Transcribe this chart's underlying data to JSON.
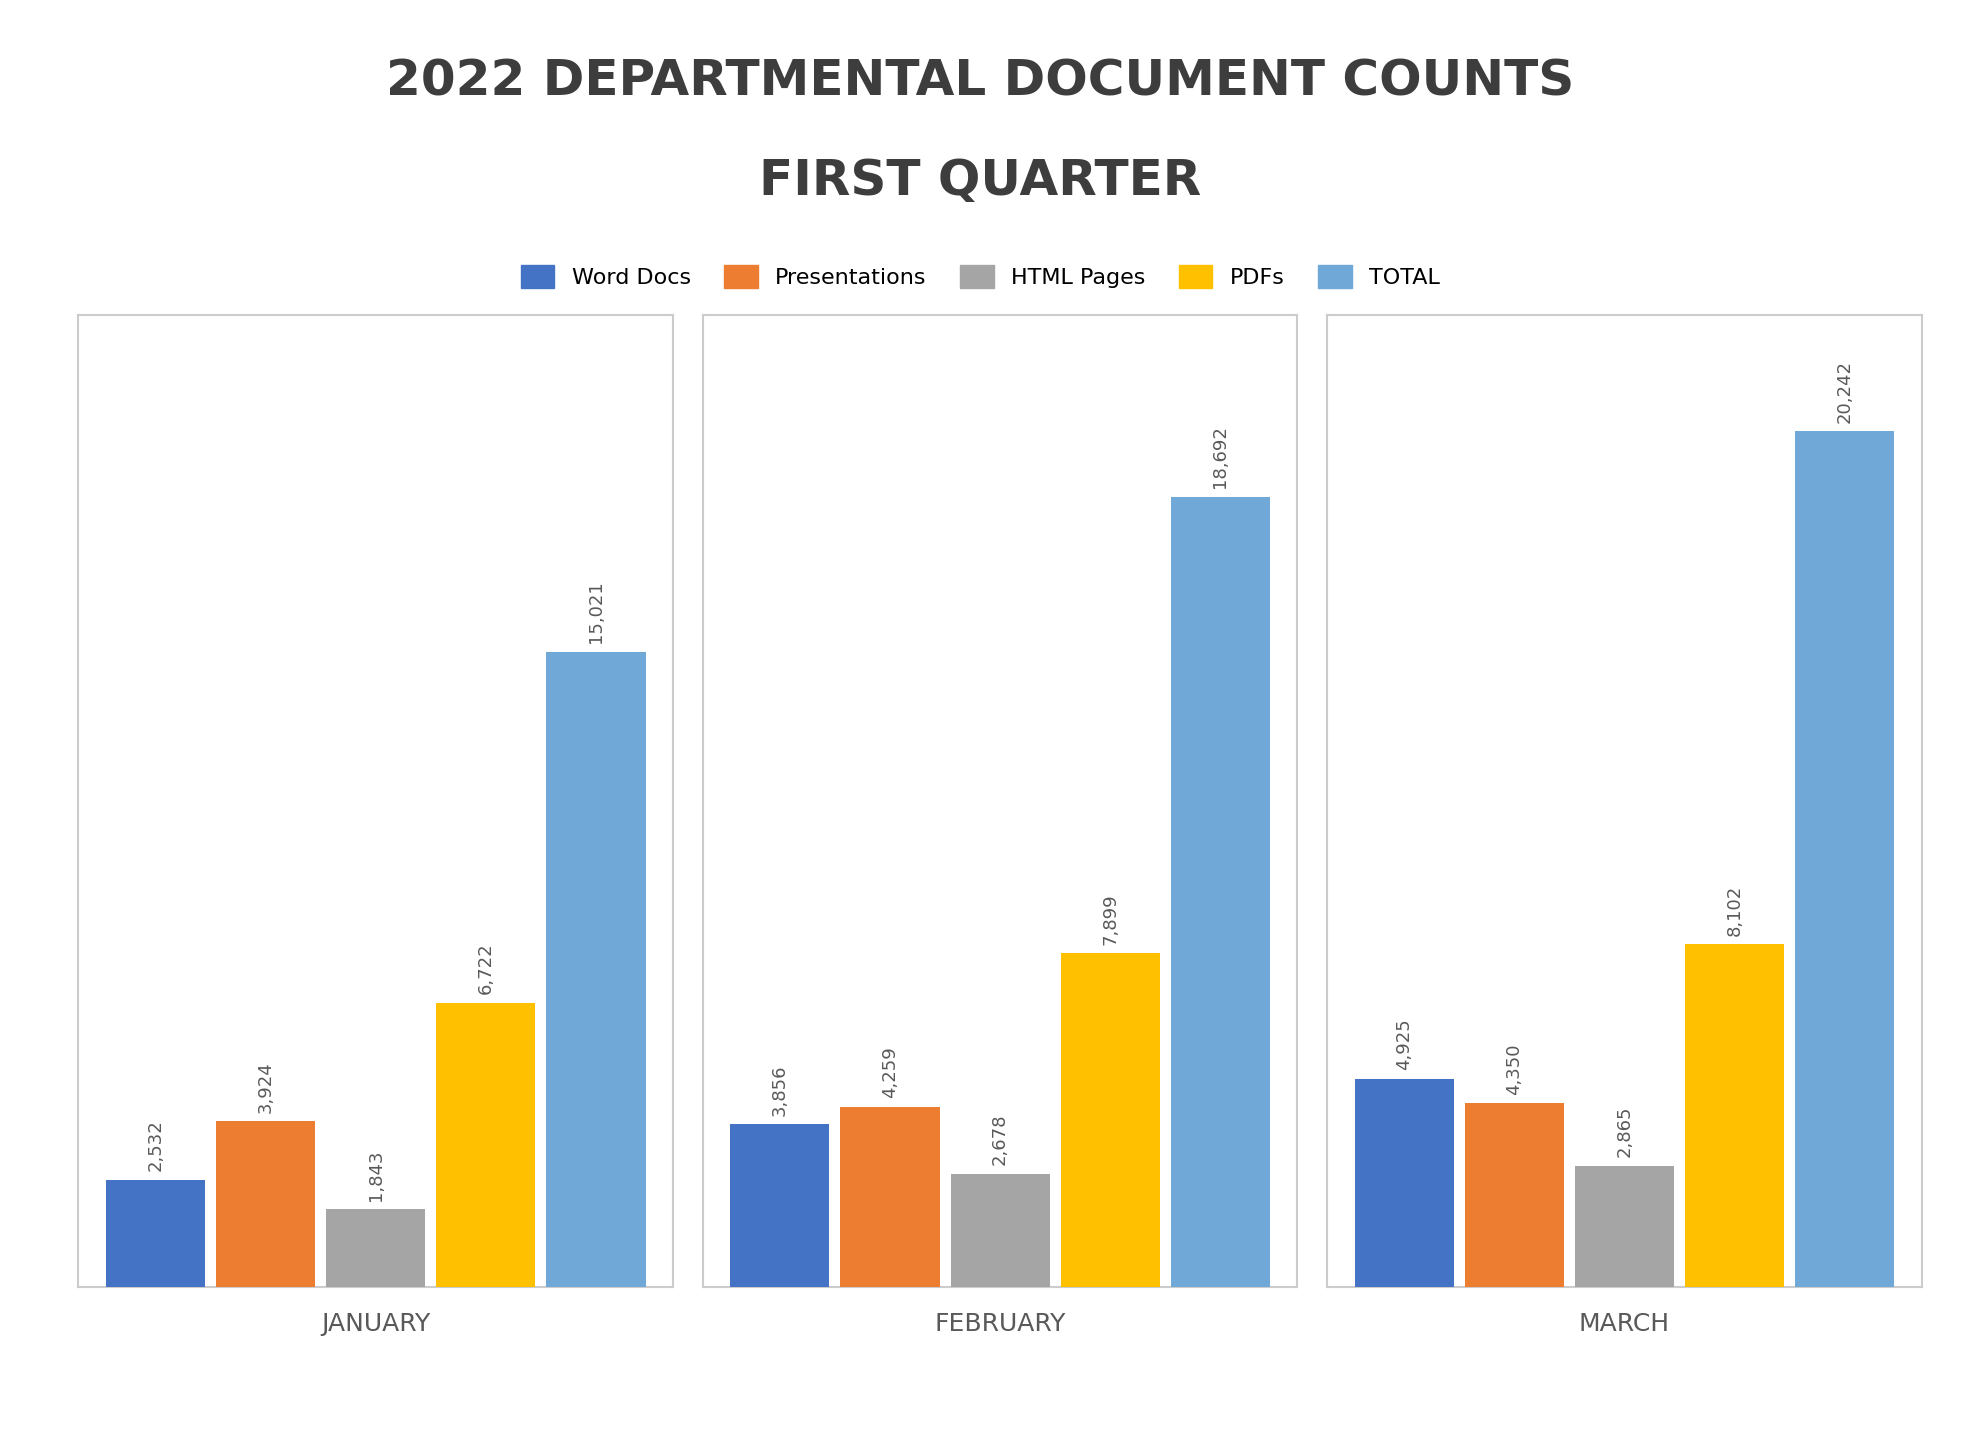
{
  "title_line1": "2022 DEPARTMENTAL DOCUMENT COUNTS",
  "title_line2": "FIRST QUARTER",
  "title_color": "#3d3d3d",
  "title_fontsize": 36,
  "months": [
    "JANUARY",
    "FEBRUARY",
    "MARCH"
  ],
  "categories": [
    "Word Docs",
    "Presentations",
    "HTML Pages",
    "PDFs",
    "TOTAL"
  ],
  "colors": [
    "#4472c4",
    "#ed7d31",
    "#a5a5a5",
    "#ffc000",
    "#70a8d8"
  ],
  "data": {
    "JANUARY": [
      2532,
      3924,
      1843,
      6722,
      15021
    ],
    "FEBRUARY": [
      3856,
      4259,
      2678,
      7899,
      18692
    ],
    "MARCH": [
      4925,
      4350,
      2865,
      8102,
      20242
    ]
  },
  "bar_width": 0.15,
  "label_fontsize": 13,
  "xlabel_fontsize": 18,
  "legend_fontsize": 16,
  "background_color": "#ffffff",
  "plot_bg_color": "#ffffff",
  "border_color": "#cccccc",
  "xlabel_color": "#595959",
  "label_color": "#595959",
  "ylim": [
    0,
    23000
  ],
  "legend_marker_size": 14
}
